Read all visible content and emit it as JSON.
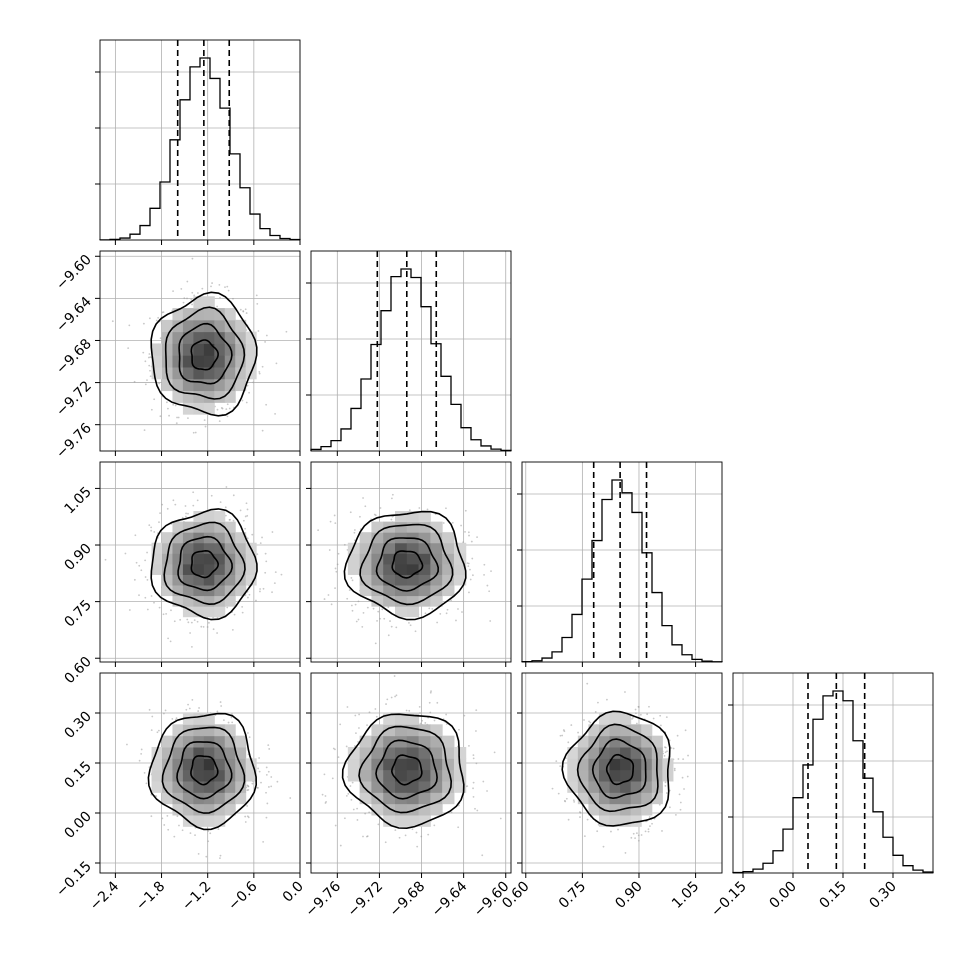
{
  "chart_data": {
    "type": "corner",
    "grid": true,
    "parameters": [
      {
        "range": [
          -2.6,
          0.0
        ],
        "ticks": [
          -2.4,
          -1.8,
          -1.2,
          -0.6,
          0.0
        ],
        "tick_labels": [
          "−2.4",
          "−1.8",
          "−1.2",
          "−0.6",
          "0.0"
        ],
        "mean": -1.25,
        "sd": 0.34,
        "quantiles": [
          -1.59,
          -1.25,
          -0.92
        ]
      },
      {
        "range": [
          -9.785,
          -9.595
        ],
        "ticks": [
          -9.76,
          -9.72,
          -9.68,
          -9.64,
          -9.6
        ],
        "tick_labels": [
          "−9.76",
          "−9.72",
          "−9.68",
          "−9.64",
          "−9.60"
        ],
        "mean": -9.694,
        "sd": 0.028,
        "quantiles": [
          -9.722,
          -9.694,
          -9.666
        ]
      },
      {
        "range": [
          0.59,
          1.12
        ],
        "ticks": [
          0.6,
          0.75,
          0.9,
          1.05
        ],
        "tick_labels": [
          "0.60",
          "0.75",
          "0.90",
          "1.05"
        ],
        "mean": 0.85,
        "sd": 0.07,
        "quantiles": [
          0.78,
          0.85,
          0.92
        ]
      },
      {
        "range": [
          -0.18,
          0.42
        ],
        "ticks": [
          -0.15,
          0.0,
          0.15,
          0.3
        ],
        "tick_labels": [
          "−0.15",
          "0.00",
          "0.15",
          "0.30"
        ],
        "mean": 0.13,
        "sd": 0.085,
        "quantiles": [
          0.045,
          0.13,
          0.215
        ]
      }
    ],
    "contour_levels_sigma": [
      0.5,
      1.0,
      1.5,
      2.0
    ],
    "hist_bins": 20
  }
}
